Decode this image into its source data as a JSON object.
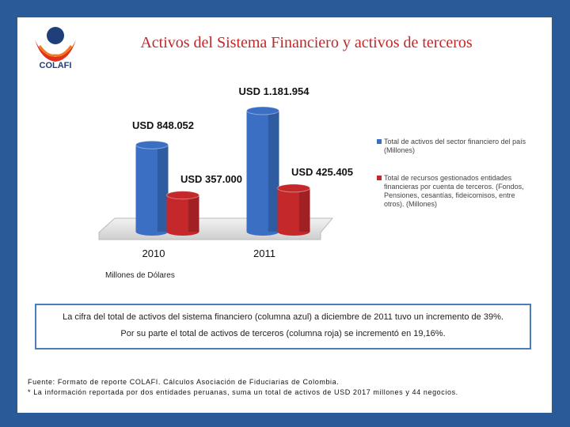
{
  "logo": "COLAFI",
  "chart_data": {
    "type": "bar",
    "title": "Activos del Sistema Financiero y activos de terceros",
    "categories": [
      "2010",
      "2011"
    ],
    "series": [
      {
        "name": "Total de activos del sector financiero del país (Millones)",
        "color": "#3a6fc4",
        "values": [
          848052,
          1181954
        ],
        "value_labels": [
          "USD 848.052",
          "USD 1.181.954"
        ]
      },
      {
        "name": "Total de recursos gestionados entidades financieras por cuenta de terceros. (Fondos, Pensiones, cesantías, fideicomisos, entre otros). (Millones)",
        "color": "#c4282b",
        "values": [
          357000,
          425405
        ],
        "value_labels": [
          "USD 357.000",
          "USD 425.405"
        ]
      }
    ],
    "y_label": "Millones de Dólares",
    "legend": "right"
  },
  "note": [
    "La cifra del total de activos del sistema financiero (columna azul) a diciembre de 2011 tuvo un incremento de 39%.",
    "Por su parte el total de activos de terceros (columna roja) se incrementó en 19,16%."
  ],
  "footer": [
    "Fuente: Formato de reporte COLAFI. Cálculos Asociación de Fiduciarias de Colombia.",
    "* La información reportada por dos entidades peruanas, suma un total de activos de USD 2017 millones y 44 negocios."
  ]
}
